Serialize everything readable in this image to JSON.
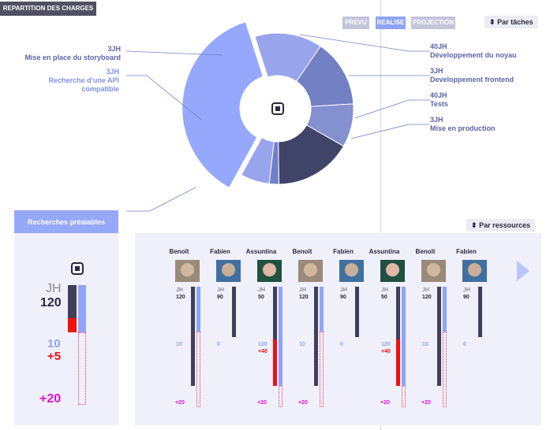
{
  "header": {
    "title": "REPARTITION DES CHARGES"
  },
  "toggles": [
    {
      "label": "PREVU",
      "color": "#c4c4dc"
    },
    {
      "label": "REALISE",
      "color": "#8ea4f8"
    },
    {
      "label": "PROJECTION",
      "color": "#c4c4dc"
    }
  ],
  "sort_tasks": {
    "label": "Par tâches",
    "icon": "sort-arrows-icon"
  },
  "sort_resources": {
    "label": "Par ressources",
    "icon": "sort-arrows-icon"
  },
  "center_icon": "target-square-icon",
  "tasks_left": [
    {
      "jh": "3JH",
      "name": "Mise en place du storyboard",
      "color": "#5a64a8"
    },
    {
      "jh": "3JH",
      "name": "Recherche d'une API compatible",
      "color": "#8090e8"
    }
  ],
  "tasks_right": [
    {
      "jh": "40JH",
      "name": "Développement du noyau",
      "color": "#5a64a8"
    },
    {
      "jh": "3JH",
      "name": "Developpement frontend",
      "color": "#5a64a8"
    },
    {
      "jh": "40JH",
      "name": "Tests",
      "color": "#5a64a8"
    },
    {
      "jh": "3JH",
      "name": "Mise en production",
      "color": "#5a64a8"
    }
  ],
  "pie_segments": [
    {
      "task": "Recherches préalables",
      "share": 0.36,
      "color": "#96a8fc",
      "exploded": true
    },
    {
      "task": "Recherche d'une API compatible",
      "share": 0.14,
      "color": "#98a4ec"
    },
    {
      "task": "Mise en place du storyboard",
      "share": 0.14,
      "color": "#7480c4"
    },
    {
      "task": "Développement du noyau",
      "share": 0.09,
      "color": "#8490d0"
    },
    {
      "task": "Developpement frontend",
      "share": 0.16,
      "color": "#404468"
    },
    {
      "task": "Tests",
      "share": 0.02,
      "color": "#7080c8"
    },
    {
      "task": "Mise en production",
      "share": 0.06,
      "color": "#98a4ec"
    }
  ],
  "selected_task": {
    "name": "Recherches préalables",
    "jh_label": "JH",
    "jh_total": "120",
    "done": "10",
    "over": "+5",
    "projection": "+20",
    "icon": "target-square-icon"
  },
  "resources": [
    {
      "name": "Benoît",
      "jh": "120",
      "done": "10",
      "over": "",
      "proj": "+20",
      "avatar": "man-avatar",
      "dark_fill": 1.0,
      "blue_fill": 0.45,
      "red_fill": 0,
      "dotted": true
    },
    {
      "name": "Fabien",
      "jh": "90",
      "done": "0",
      "over": "",
      "proj": "",
      "avatar": "man-avatar-2",
      "dark_fill": 0.7,
      "blue_fill": 0,
      "red_fill": 0,
      "dotted": false
    },
    {
      "name": "Assuntina",
      "jh": "50",
      "done": "120",
      "over": "+40",
      "proj": "+20",
      "avatar": "woman-avatar",
      "dark_fill": 1.0,
      "blue_fill": 1.0,
      "red_fill": 0.47,
      "dotted": true
    },
    {
      "name": "Benoît",
      "jh": "120",
      "done": "10",
      "over": "",
      "proj": "+20",
      "avatar": "man-avatar",
      "dark_fill": 1.0,
      "blue_fill": 0.45,
      "red_fill": 0,
      "dotted": true
    },
    {
      "name": "Fabien",
      "jh": "90",
      "done": "0",
      "over": "",
      "proj": "",
      "avatar": "man-avatar-2",
      "dark_fill": 0.7,
      "blue_fill": 0,
      "red_fill": 0,
      "dotted": false
    },
    {
      "name": "Assuntina",
      "jh": "50",
      "done": "120",
      "over": "+40",
      "proj": "+20",
      "avatar": "woman-avatar",
      "dark_fill": 1.0,
      "blue_fill": 1.0,
      "red_fill": 0.47,
      "dotted": true
    },
    {
      "name": "Benoît",
      "jh": "120",
      "done": "10",
      "over": "",
      "proj": "+20",
      "avatar": "man-avatar",
      "dark_fill": 1.0,
      "blue_fill": 0.45,
      "red_fill": 0,
      "dotted": true
    },
    {
      "name": "Fabien",
      "jh": "90",
      "done": "0",
      "over": "",
      "proj": "",
      "avatar": "man-avatar-2",
      "dark_fill": 0.7,
      "blue_fill": 0,
      "red_fill": 0,
      "dotted": false
    }
  ],
  "next_icon": "next-arrow-icon"
}
